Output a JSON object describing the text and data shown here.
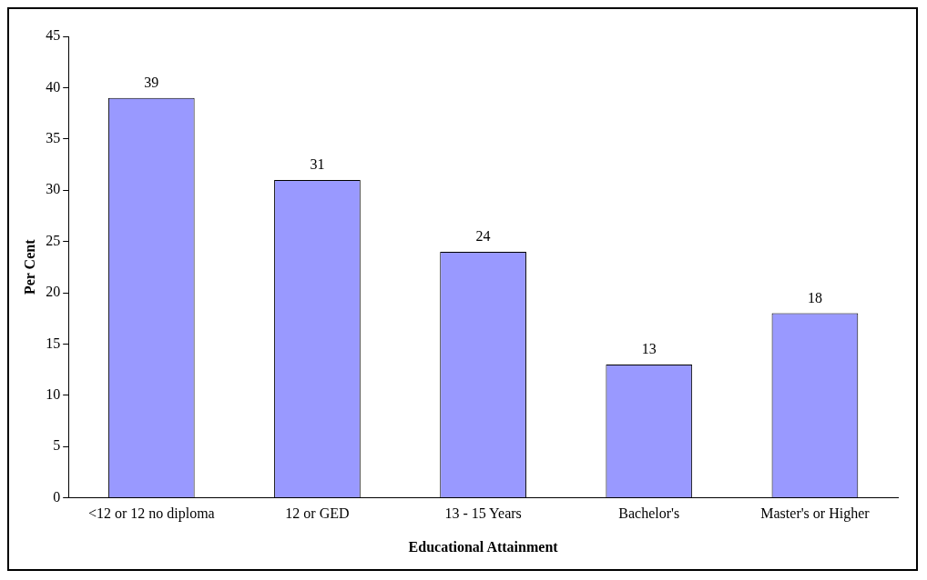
{
  "chart_data": {
    "type": "bar",
    "xlabel": "Educational Attainment",
    "ylabel": "Per Cent",
    "categories": [
      "<12 or 12 no diploma",
      "12 or GED",
      "13 - 15 Years",
      "Bachelor's",
      "Master's or Higher"
    ],
    "values": [
      39,
      31,
      24,
      13,
      18
    ],
    "color": "#9999ff",
    "ylim": [
      0,
      45
    ],
    "yticks": [
      0,
      5,
      10,
      15,
      20,
      25,
      30,
      35,
      40,
      45
    ],
    "grid": false,
    "data_labels": true,
    "legend": false
  }
}
